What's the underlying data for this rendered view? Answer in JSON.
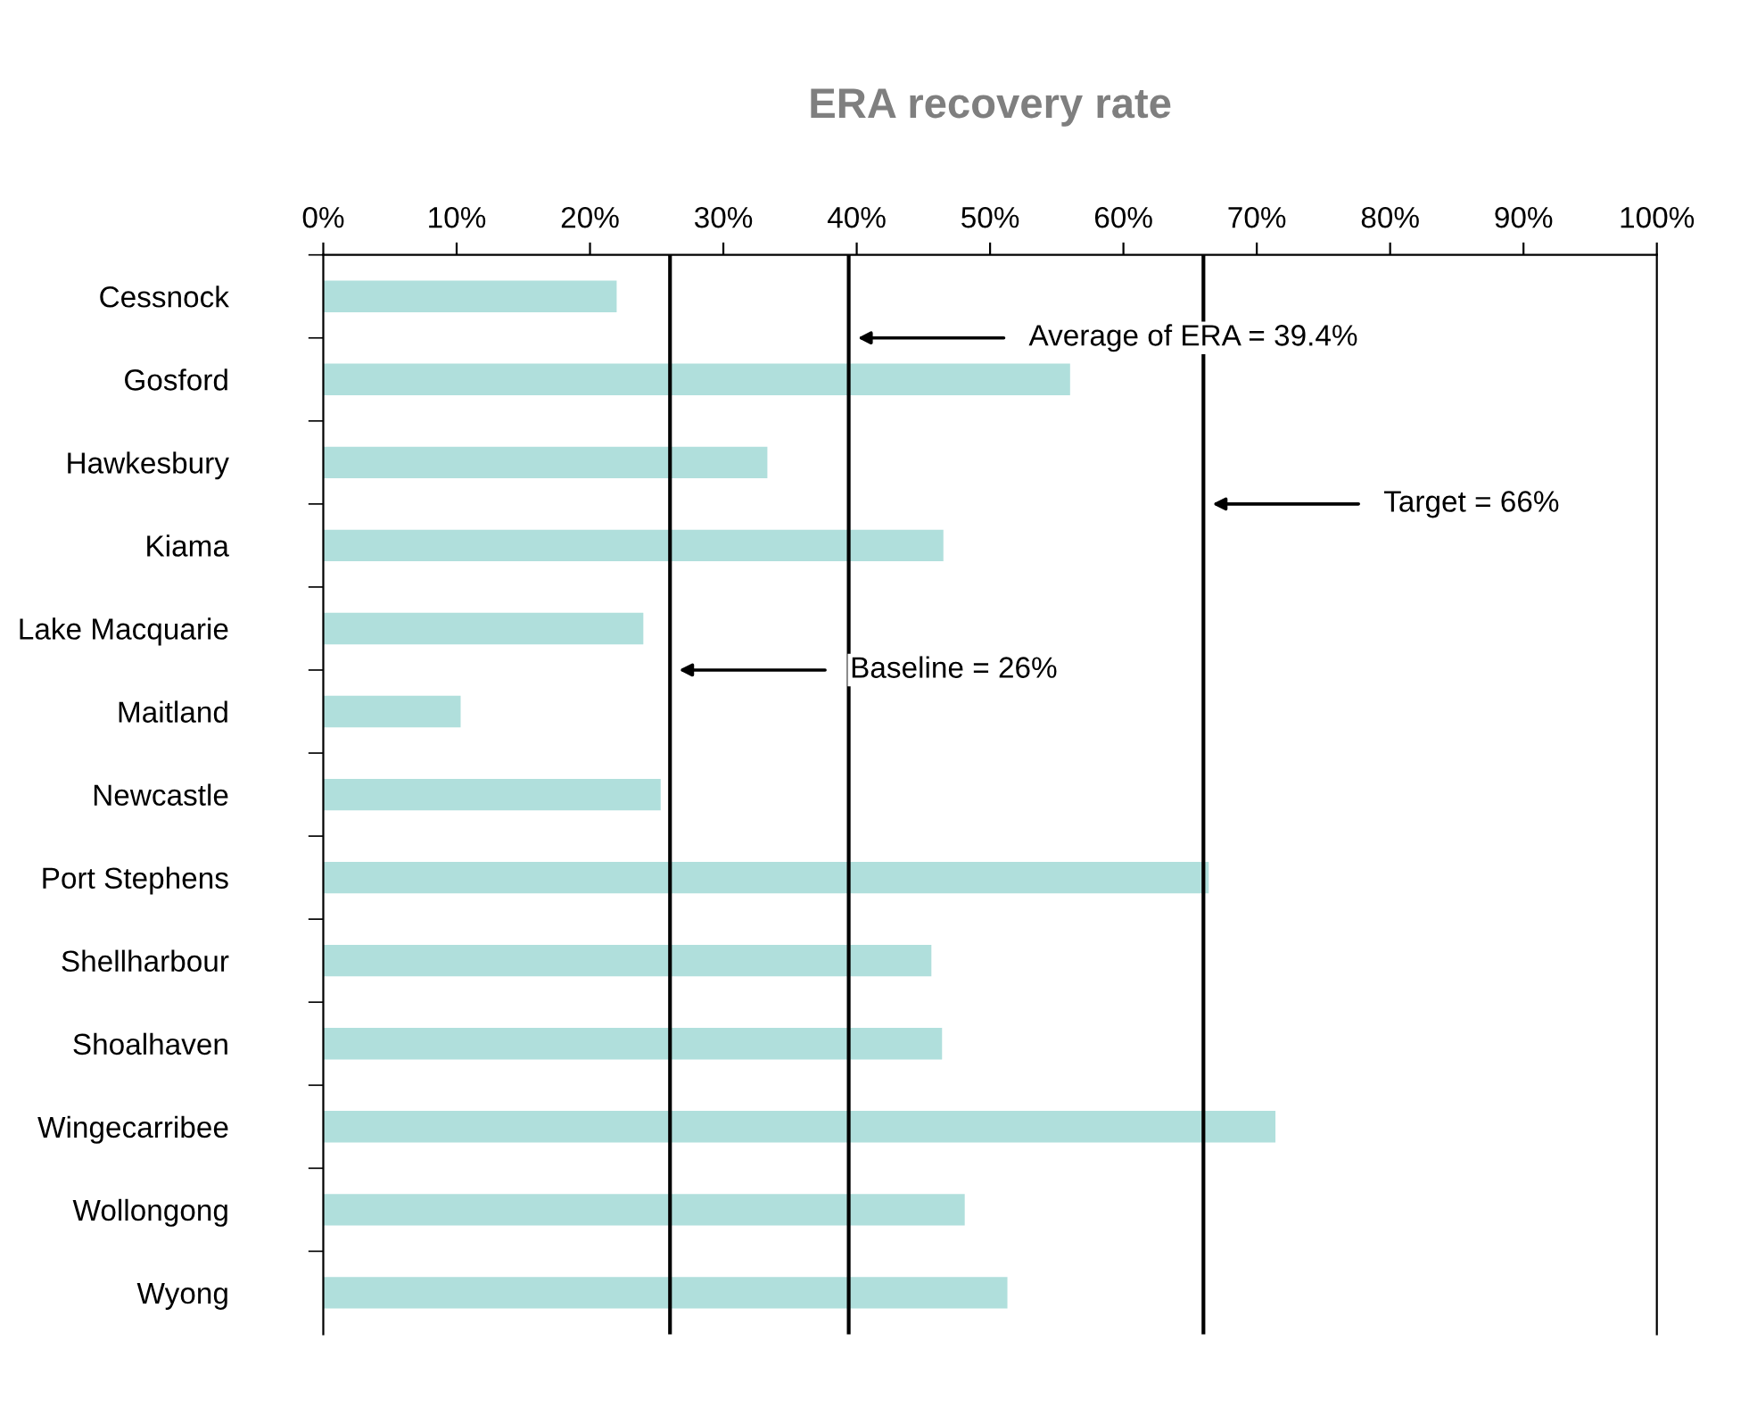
{
  "chart_data": {
    "type": "bar",
    "orientation": "horizontal",
    "title": "ERA recovery rate",
    "categories": [
      "Cessnock",
      "Gosford",
      "Hawkesbury",
      "Kiama",
      "Lake Macquarie",
      "Maitland",
      "Newcastle",
      "Port Stephens",
      "Shellharbour",
      "Shoalhaven",
      "Wingecarribee",
      "Wollongong",
      "Wyong"
    ],
    "values": [
      22,
      56,
      33.3,
      46.5,
      24,
      10.3,
      25.3,
      66.4,
      45.6,
      46.4,
      71.4,
      48.1,
      51.3
    ],
    "color": "#b0dfdc",
    "xlim": [
      0,
      100
    ],
    "xticks": [
      {
        "value": 0,
        "label": "0%"
      },
      {
        "value": 10,
        "label": "10%"
      },
      {
        "value": 20,
        "label": "20%"
      },
      {
        "value": 30,
        "label": "30%"
      },
      {
        "value": 40,
        "label": "40%"
      },
      {
        "value": 50,
        "label": "50%"
      },
      {
        "value": 60,
        "label": "60%"
      },
      {
        "value": 70,
        "label": "70%"
      },
      {
        "value": 80,
        "label": "80%"
      },
      {
        "value": 90,
        "label": "90%"
      },
      {
        "value": 100,
        "label": "100%"
      }
    ],
    "ref_lines": [
      {
        "axis": "x",
        "value": 26,
        "label": "Baseline = 26%",
        "color": "#000000"
      },
      {
        "axis": "x",
        "value": 39.4,
        "label": "Average of ERA = 39.4%",
        "color": "#000000"
      },
      {
        "axis": "x",
        "value": 66,
        "label": "Target = 66%",
        "color": "#000000"
      }
    ],
    "grid": false,
    "legend": false
  }
}
